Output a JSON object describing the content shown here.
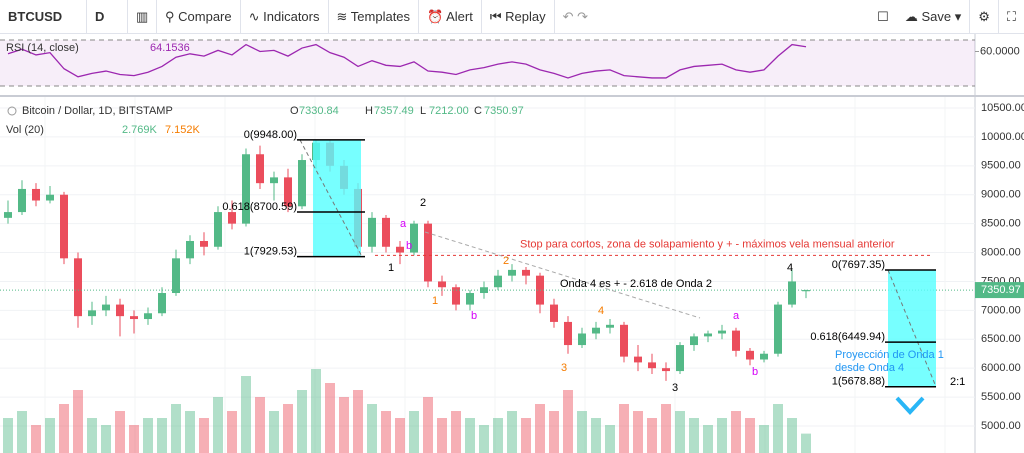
{
  "toolbar": {
    "symbol": "BTCUSD",
    "interval": "D",
    "compare": "Compare",
    "indicators": "Indicators",
    "templates": "Templates",
    "alert": "Alert",
    "replay": "Replay",
    "save": "Save"
  },
  "rsi": {
    "title": "RSI (14, close)",
    "levels": [
      70,
      30
    ],
    "yticks": [
      {
        "value": 60,
        "label": "60.0000"
      }
    ],
    "values": [
      58,
      62,
      57,
      59,
      45,
      38,
      41,
      43,
      40,
      39,
      42,
      47,
      55,
      58,
      56,
      61,
      57,
      66,
      60,
      61,
      56,
      63,
      66,
      59,
      55,
      47,
      52,
      48,
      47,
      51,
      43,
      42,
      40,
      44,
      46,
      49,
      51,
      49,
      44,
      41,
      37,
      41,
      43,
      44,
      39,
      38,
      37,
      37,
      44,
      47,
      48,
      49,
      44,
      42,
      44,
      56,
      66,
      64.1536
    ]
  },
  "legend": {
    "title": "Bitcoin / Dollar, 1D, BITSTAMP",
    "o": "O",
    "o_value": "7330.84",
    "h": "H",
    "h_value": "7357.49",
    "l": "L",
    "l_value": "7212.00",
    "c": "C",
    "c_value": "7350.97",
    "vol": "Vol (20)",
    "vol_value": "2.769K",
    "vol_ma": "7.152K"
  },
  "chart_data": {
    "type": "candlestick",
    "last_price": {
      "value": 7350.97,
      "label": "7350.97"
    },
    "yticks": [
      {
        "value": 10500,
        "label": "10500.00"
      },
      {
        "value": 10000,
        "label": "10000.00"
      },
      {
        "value": 9500,
        "label": "9500.00"
      },
      {
        "value": 9000,
        "label": "9000.00"
      },
      {
        "value": 8500,
        "label": "8500.00"
      },
      {
        "value": 8000,
        "label": "8000.00"
      },
      {
        "value": 7500,
        "label": "7500.00"
      },
      {
        "value": 7000,
        "label": "7000.00"
      },
      {
        "value": 6500,
        "label": "6500.00"
      },
      {
        "value": 6000,
        "label": "6000.00"
      },
      {
        "value": 5500,
        "label": "5500.00"
      },
      {
        "value": 5000,
        "label": "5000.00"
      }
    ],
    "candles": [
      [
        8600,
        8900,
        8500,
        8700
      ],
      [
        8700,
        9250,
        8650,
        9100
      ],
      [
        9100,
        9200,
        8800,
        8900
      ],
      [
        8900,
        9150,
        8850,
        9000
      ],
      [
        9000,
        9050,
        7800,
        7900
      ],
      [
        7900,
        8000,
        6700,
        6900
      ],
      [
        6900,
        7150,
        6750,
        7000
      ],
      [
        7000,
        7250,
        6900,
        7100
      ],
      [
        7100,
        7200,
        6550,
        6900
      ],
      [
        6900,
        7000,
        6600,
        6850
      ],
      [
        6850,
        7050,
        6750,
        6950
      ],
      [
        6950,
        7400,
        6900,
        7300
      ],
      [
        7300,
        8050,
        7250,
        7900
      ],
      [
        7900,
        8300,
        7800,
        8200
      ],
      [
        8200,
        8350,
        7950,
        8100
      ],
      [
        8100,
        8800,
        8050,
        8700
      ],
      [
        8700,
        8900,
        8400,
        8500
      ],
      [
        8500,
        9800,
        8450,
        9700
      ],
      [
        9700,
        9850,
        9100,
        9200
      ],
      [
        9200,
        9400,
        8900,
        9300
      ],
      [
        9300,
        9450,
        8700,
        8800
      ],
      [
        8800,
        9700,
        8750,
        9600
      ],
      [
        9600,
        9948,
        9450,
        9900
      ],
      [
        9900,
        9950,
        9400,
        9500
      ],
      [
        9500,
        9600,
        9000,
        9100
      ],
      [
        9100,
        9200,
        7950,
        8100
      ],
      [
        8100,
        8700,
        8000,
        8600
      ],
      [
        8600,
        8650,
        8000,
        8100
      ],
      [
        8100,
        8200,
        7800,
        8000
      ],
      [
        8000,
        8550,
        7950,
        8500
      ],
      [
        8500,
        8550,
        7400,
        7500
      ],
      [
        7500,
        7600,
        7250,
        7400
      ],
      [
        7400,
        7450,
        7000,
        7100
      ],
      [
        7100,
        7350,
        7000,
        7300
      ],
      [
        7300,
        7500,
        7200,
        7400
      ],
      [
        7400,
        7700,
        7350,
        7600
      ],
      [
        7600,
        7800,
        7500,
        7700
      ],
      [
        7700,
        7750,
        7450,
        7600
      ],
      [
        7600,
        7650,
        6950,
        7100
      ],
      [
        7100,
        7200,
        6700,
        6800
      ],
      [
        6800,
        6900,
        6250,
        6400
      ],
      [
        6400,
        6700,
        6350,
        6600
      ],
      [
        6600,
        6800,
        6500,
        6700
      ],
      [
        6700,
        6850,
        6600,
        6750
      ],
      [
        6750,
        6800,
        6100,
        6200
      ],
      [
        6200,
        6400,
        5950,
        6100
      ],
      [
        6100,
        6250,
        5900,
        6000
      ],
      [
        6000,
        6100,
        5780,
        5950
      ],
      [
        5950,
        6450,
        5900,
        6400
      ],
      [
        6400,
        6600,
        6300,
        6550
      ],
      [
        6550,
        6650,
        6450,
        6600
      ],
      [
        6600,
        6750,
        6500,
        6650
      ],
      [
        6650,
        6700,
        6200,
        6300
      ],
      [
        6300,
        6350,
        6050,
        6150
      ],
      [
        6150,
        6300,
        6100,
        6250
      ],
      [
        6250,
        7150,
        6200,
        7100
      ],
      [
        7100,
        7700,
        7050,
        7500
      ],
      [
        7330.84,
        7357.49,
        7212.0,
        7350.97
      ]
    ],
    "volumes": [
      5,
      6,
      4,
      5,
      7,
      9,
      5,
      4,
      6,
      4,
      5,
      5,
      7,
      6,
      5,
      8,
      6,
      11,
      8,
      6,
      7,
      9,
      12,
      10,
      8,
      9,
      7,
      6,
      5,
      6,
      8,
      5,
      6,
      5,
      4,
      5,
      6,
      5,
      7,
      6,
      9,
      6,
      5,
      4,
      7,
      6,
      5,
      7,
      6,
      5,
      4,
      5,
      6,
      5,
      4,
      7,
      5,
      2.769
    ],
    "fib_left": [
      {
        "label": "0(9948.00)",
        "price": 9948
      },
      {
        "label": "0.618(8700.59)",
        "price": 8700.59
      },
      {
        "label": "1(7929.53)",
        "price": 7929.53
      }
    ],
    "fib_right": [
      {
        "label": "0(7697.35)",
        "price": 7697.35
      },
      {
        "label": "0.618(6449.94)",
        "price": 6449.94
      },
      {
        "label": "1(5678.88)",
        "price": 5678.88
      }
    ],
    "stop": {
      "text": "Stop para cortos, zona de solapamiento y + - máximos vela mensual anterior",
      "price": 7950
    },
    "note": "Onda 4 es + - 2.618 de Onda 2",
    "projection": [
      "Proyección de Onda 1",
      "desde Onda 4"
    ],
    "ratio": "2:1",
    "waves": [
      "1",
      "2",
      "3",
      "4"
    ],
    "sub_waves": [
      "1",
      "2",
      "3",
      "4"
    ],
    "corrections": [
      "a",
      "b",
      "b",
      "a",
      "b"
    ]
  }
}
